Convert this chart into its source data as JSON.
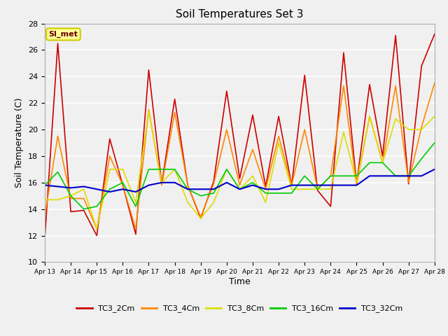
{
  "title": "Soil Temperatures Set 3",
  "xlabel": "Time",
  "ylabel": "Soil Temperature (C)",
  "ylim": [
    10,
    28
  ],
  "xlim": [
    0,
    15
  ],
  "bg_color": "#dcdcdc",
  "plot_bg_color": "#dcdcdc",
  "annotation_text": "SI_met",
  "annotation_bg": "#ffff99",
  "annotation_border": "#cccc00",
  "x_tick_labels": [
    "Apr 13",
    "Apr 14",
    "Apr 15",
    "Apr 16",
    "Apr 17",
    "Apr 18",
    "Apr 19",
    "Apr 20",
    "Apr 21",
    "Apr 22",
    "Apr 23",
    "Apr 24",
    "Apr 25",
    "Apr 26",
    "Apr 27",
    "Apr 28"
  ],
  "series_order": [
    "TC3_2Cm",
    "TC3_4Cm",
    "TC3_8Cm",
    "TC3_16Cm",
    "TC3_32Cm"
  ],
  "series": {
    "TC3_2Cm": {
      "color": "#cc0000",
      "lw": 1.2,
      "x": [
        0,
        0.5,
        1.0,
        1.5,
        2.0,
        2.5,
        3.0,
        3.5,
        4.0,
        4.5,
        5.0,
        5.5,
        6.0,
        6.5,
        7.0,
        7.5,
        8.0,
        8.5,
        9.0,
        9.5,
        10.0,
        10.5,
        11.0,
        11.5,
        12.0,
        12.5,
        13.0,
        13.5,
        14.0,
        14.5,
        15.0
      ],
      "y": [
        11.8,
        26.5,
        13.8,
        13.9,
        12.0,
        19.3,
        15.8,
        12.1,
        24.5,
        15.9,
        22.3,
        15.8,
        13.3,
        16.1,
        22.9,
        16.3,
        21.1,
        15.7,
        21.0,
        15.8,
        24.1,
        15.4,
        14.2,
        25.8,
        15.9,
        23.4,
        18.0,
        27.1,
        15.9,
        24.8,
        27.2
      ]
    },
    "TC3_4Cm": {
      "color": "#ff8800",
      "lw": 1.2,
      "x": [
        0,
        0.5,
        1.0,
        1.5,
        2.0,
        2.5,
        3.0,
        3.5,
        4.0,
        4.5,
        5.0,
        5.5,
        6.0,
        6.5,
        7.0,
        7.5,
        8.0,
        8.5,
        9.0,
        9.5,
        10.0,
        10.5,
        11.0,
        11.5,
        12.0,
        12.5,
        13.0,
        13.5,
        14.0,
        14.5,
        15.0
      ],
      "y": [
        13.5,
        19.5,
        14.8,
        14.8,
        12.5,
        18.0,
        15.8,
        12.5,
        21.5,
        15.8,
        21.3,
        15.8,
        13.4,
        15.9,
        20.0,
        15.8,
        18.5,
        15.5,
        19.5,
        15.8,
        20.0,
        15.5,
        16.5,
        23.3,
        15.8,
        21.0,
        17.5,
        23.3,
        16.0,
        20.2,
        23.5
      ]
    },
    "TC3_8Cm": {
      "color": "#dddd00",
      "lw": 1.2,
      "x": [
        0,
        0.5,
        1.0,
        1.5,
        2.0,
        2.5,
        3.0,
        3.5,
        4.0,
        4.5,
        5.0,
        5.5,
        6.0,
        6.5,
        7.0,
        7.5,
        8.0,
        8.5,
        9.0,
        9.5,
        10.0,
        10.5,
        11.0,
        11.5,
        12.0,
        12.5,
        13.0,
        13.5,
        14.0,
        14.5,
        15.0
      ],
      "y": [
        14.7,
        14.7,
        15.0,
        15.5,
        12.5,
        17.0,
        17.0,
        14.5,
        21.4,
        16.0,
        17.0,
        14.5,
        13.3,
        14.5,
        17.0,
        15.5,
        16.5,
        14.5,
        19.0,
        15.5,
        15.5,
        15.5,
        15.5,
        19.8,
        16.0,
        21.0,
        17.5,
        20.8,
        20.0,
        20.0,
        21.0
      ]
    },
    "TC3_16Cm": {
      "color": "#00cc00",
      "lw": 1.2,
      "x": [
        0,
        0.5,
        1.0,
        1.5,
        2.0,
        2.5,
        3.0,
        3.5,
        4.0,
        4.5,
        5.0,
        5.5,
        6.0,
        6.5,
        7.0,
        7.5,
        8.0,
        8.5,
        9.0,
        9.5,
        10.0,
        10.5,
        11.0,
        11.5,
        12.0,
        12.5,
        13.0,
        13.5,
        14.0,
        14.5,
        15.0
      ],
      "y": [
        15.8,
        16.8,
        15.0,
        14.0,
        14.2,
        15.5,
        16.0,
        14.2,
        17.0,
        17.0,
        17.0,
        15.5,
        15.0,
        15.2,
        17.0,
        15.5,
        16.0,
        15.2,
        15.2,
        15.2,
        16.5,
        15.5,
        16.5,
        16.5,
        16.5,
        17.5,
        17.5,
        16.5,
        16.5,
        17.8,
        19.0
      ]
    },
    "TC3_32Cm": {
      "color": "#0000cc",
      "lw": 1.5,
      "x": [
        0,
        0.5,
        1.0,
        1.5,
        2.0,
        2.5,
        3.0,
        3.5,
        4.0,
        4.5,
        5.0,
        5.5,
        6.0,
        6.5,
        7.0,
        7.5,
        8.0,
        8.5,
        9.0,
        9.5,
        10.0,
        10.5,
        11.0,
        11.5,
        12.0,
        12.5,
        13.0,
        13.5,
        14.0,
        14.5,
        15.0
      ],
      "y": [
        15.8,
        15.7,
        15.6,
        15.7,
        15.5,
        15.3,
        15.5,
        15.3,
        15.8,
        16.0,
        16.0,
        15.5,
        15.5,
        15.5,
        16.0,
        15.5,
        15.8,
        15.5,
        15.5,
        15.8,
        15.8,
        15.8,
        15.8,
        15.8,
        15.8,
        16.5,
        16.5,
        16.5,
        16.5,
        16.5,
        17.0
      ]
    }
  }
}
